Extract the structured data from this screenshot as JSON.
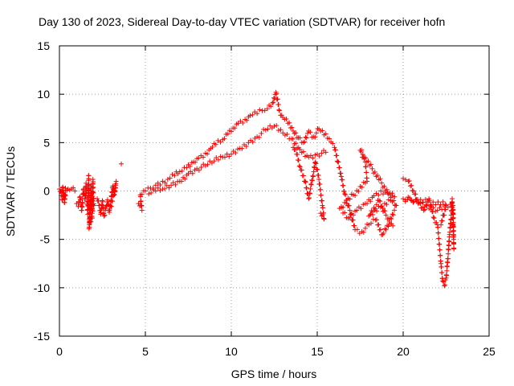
{
  "chart_data": {
    "type": "scatter",
    "title": "Day 130 of 2023, Sidereal Day-to-day VTEC variation (SDTVAR) for receiver hofn",
    "xlabel": "GPS time / hours",
    "ylabel": "SDTVAR / TECUs",
    "xlim": [
      0,
      25
    ],
    "ylim": [
      -15,
      15
    ],
    "xticks": [
      0,
      5,
      10,
      15,
      20,
      25
    ],
    "yticks": [
      -15,
      -10,
      -5,
      0,
      5,
      10,
      15
    ],
    "grid": true,
    "marker": "+",
    "color": "#ff0000",
    "segments": [
      {
        "name": "early-cluster",
        "x": [
          0,
          0.5
        ],
        "y": [
          -1.5,
          0.5
        ],
        "points": [
          [
            0,
            0.2
          ],
          [
            0.1,
            -0.5
          ],
          [
            0.2,
            0.4
          ],
          [
            0.3,
            -1.2
          ],
          [
            0.35,
            0.3
          ],
          [
            0.5,
            0.2
          ],
          [
            0.15,
            -0.9
          ],
          [
            0.25,
            -0.2
          ]
        ]
      },
      {
        "name": "isolated",
        "x": [
          0.6,
          1.0
        ],
        "y": [
          0,
          0.3
        ],
        "points": [
          [
            0.6,
            0.1
          ],
          [
            0.7,
            0.2
          ],
          [
            0.9,
            0.0
          ]
        ]
      },
      {
        "name": "hour1-2",
        "x": [
          0.9,
          2.1
        ],
        "y": [
          -4,
          2
        ],
        "points": [
          [
            1.0,
            -1.3
          ],
          [
            1.1,
            -1.6
          ],
          [
            1.2,
            -0.6
          ],
          [
            1.3,
            -2.0
          ],
          [
            1.4,
            0.2
          ],
          [
            1.5,
            -0.8
          ],
          [
            1.55,
            0.8
          ],
          [
            1.6,
            -1.1
          ],
          [
            1.65,
            -2.4
          ],
          [
            1.7,
            1.6
          ],
          [
            1.75,
            -3.5
          ],
          [
            1.8,
            -1.0
          ],
          [
            1.85,
            0.5
          ],
          [
            1.9,
            -2.8
          ],
          [
            1.95,
            1.2
          ],
          [
            2.0,
            -1.5
          ],
          [
            1.72,
            -3.9
          ],
          [
            1.88,
            -0.2
          ]
        ]
      },
      {
        "name": "hour2-3",
        "x": [
          2.0,
          3.4
        ],
        "y": [
          -2.8,
          1.5
        ],
        "points": [
          [
            2.2,
            -0.8
          ],
          [
            2.3,
            -1.5
          ],
          [
            2.4,
            -2.4
          ],
          [
            2.5,
            -1.0
          ],
          [
            2.6,
            -2.6
          ],
          [
            2.7,
            -1.8
          ],
          [
            2.8,
            -0.9
          ],
          [
            2.9,
            -2.2
          ],
          [
            3.0,
            -1.0
          ],
          [
            3.1,
            0.5
          ],
          [
            3.2,
            -0.4
          ],
          [
            3.3,
            1.0
          ],
          [
            3.0,
            -1.6
          ]
        ]
      },
      {
        "name": "outlier",
        "points": [
          [
            3.6,
            2.8
          ]
        ]
      },
      {
        "name": "rise",
        "points": [
          [
            4.6,
            -1.3
          ],
          [
            4.8,
            -2.0
          ],
          [
            4.7,
            -0.4
          ],
          [
            5.0,
            0.0
          ],
          [
            5.3,
            0.3
          ],
          [
            5.6,
            0.6
          ],
          [
            6.0,
            1.0
          ],
          [
            6.3,
            1.2
          ],
          [
            6.7,
            1.6
          ],
          [
            7.0,
            2.0
          ],
          [
            7.4,
            2.4
          ],
          [
            7.8,
            3.0
          ],
          [
            8.1,
            3.4
          ],
          [
            8.5,
            3.9
          ],
          [
            8.8,
            4.4
          ],
          [
            9.1,
            4.8
          ],
          [
            9.5,
            5.3
          ],
          [
            9.8,
            5.9
          ],
          [
            10.1,
            6.5
          ],
          [
            10.4,
            7.0
          ],
          [
            10.8,
            7.4
          ],
          [
            11.1,
            7.8
          ],
          [
            11.5,
            8.0
          ],
          [
            11.8,
            8.3
          ],
          [
            12.1,
            8.5
          ],
          [
            12.4,
            9.1
          ],
          [
            12.6,
            10.2
          ],
          [
            12.8,
            8.3
          ],
          [
            13.0,
            7.6
          ],
          [
            13.3,
            7.0
          ],
          [
            13.6,
            6.2
          ],
          [
            13.9,
            5.5
          ],
          [
            14.2,
            5.0
          ],
          [
            14.5,
            6.2
          ],
          [
            14.8,
            5.6
          ],
          [
            15.1,
            6.4
          ],
          [
            15.4,
            5.8
          ],
          [
            15.7,
            5.4
          ],
          [
            15.9,
            4.9
          ]
        ]
      },
      {
        "name": "rise-lower-band",
        "points": [
          [
            5.2,
            -0.3
          ],
          [
            5.6,
            0.0
          ],
          [
            6.0,
            0.2
          ],
          [
            6.5,
            0.6
          ],
          [
            7.0,
            1.0
          ],
          [
            7.5,
            1.8
          ],
          [
            8.0,
            2.3
          ],
          [
            8.5,
            2.6
          ],
          [
            9.0,
            3.1
          ],
          [
            9.5,
            3.5
          ],
          [
            10.0,
            3.8
          ],
          [
            10.5,
            4.4
          ],
          [
            11.0,
            5.0
          ],
          [
            11.5,
            5.6
          ],
          [
            12.0,
            6.3
          ],
          [
            12.5,
            6.7
          ],
          [
            13.0,
            6.0
          ],
          [
            13.5,
            5.4
          ],
          [
            14.0,
            4.3
          ],
          [
            14.5,
            3.5
          ],
          [
            15.0,
            3.8
          ],
          [
            15.5,
            4.0
          ]
        ]
      },
      {
        "name": "drops",
        "points": [
          [
            13.6,
            4.5
          ],
          [
            13.8,
            3.8
          ],
          [
            14.0,
            2.5
          ],
          [
            14.3,
            1.0
          ],
          [
            14.5,
            -0.8
          ],
          [
            14.9,
            3.0
          ],
          [
            15.1,
            1.2
          ],
          [
            15.3,
            -1.5
          ],
          [
            15.4,
            -2.9
          ],
          [
            15.2,
            -2.3
          ]
        ]
      },
      {
        "name": "late-bands",
        "points": [
          [
            16.0,
            4.5
          ],
          [
            16.2,
            3.0
          ],
          [
            16.4,
            1.5
          ],
          [
            16.6,
            -0.3
          ],
          [
            16.9,
            -2.0
          ],
          [
            17.2,
            -4.0
          ],
          [
            17.6,
            -4.2
          ],
          [
            18.0,
            -3.5
          ],
          [
            18.4,
            -3.0
          ],
          [
            18.8,
            -4.5
          ],
          [
            19.2,
            -3.2
          ],
          [
            19.6,
            -1.5
          ],
          [
            17.5,
            4.2
          ],
          [
            17.8,
            3.0
          ],
          [
            17.9,
            1.0
          ],
          [
            16.3,
            -1.8
          ],
          [
            16.8,
            -2.8
          ],
          [
            17.3,
            -2.0
          ],
          [
            17.8,
            -1.3
          ],
          [
            18.3,
            -0.5
          ],
          [
            18.7,
            0.0
          ],
          [
            19.1,
            -0.2
          ],
          [
            19.5,
            -0.6
          ],
          [
            18.0,
            -2.6
          ],
          [
            18.6,
            -1.0
          ],
          [
            19.0,
            -2.5
          ],
          [
            19.4,
            -3.6
          ]
        ]
      },
      {
        "name": "final-dip",
        "points": [
          [
            20.0,
            1.3
          ],
          [
            20.3,
            1.0
          ],
          [
            20.6,
            0.0
          ],
          [
            20.9,
            -1.2
          ],
          [
            21.2,
            -2.0
          ],
          [
            21.5,
            -0.8
          ],
          [
            21.8,
            -2.8
          ],
          [
            22.0,
            -3.5
          ],
          [
            22.1,
            -5.5
          ],
          [
            22.2,
            -7.5
          ],
          [
            22.3,
            -9.3
          ],
          [
            22.4,
            -9.8
          ],
          [
            22.5,
            -9.0
          ],
          [
            22.6,
            -7.0
          ],
          [
            22.7,
            -4.5
          ],
          [
            22.8,
            -2.5
          ],
          [
            22.85,
            -0.8
          ],
          [
            22.9,
            -3.5
          ],
          [
            22.95,
            -6.0
          ],
          [
            22.9,
            -1.5
          ],
          [
            20.0,
            -0.8
          ],
          [
            20.5,
            -1.0
          ],
          [
            21.0,
            -1.3
          ],
          [
            21.5,
            -1.8
          ],
          [
            22.0,
            -2.0
          ],
          [
            22.5,
            -1.5
          ],
          [
            22.2,
            -3.5
          ]
        ]
      }
    ]
  }
}
